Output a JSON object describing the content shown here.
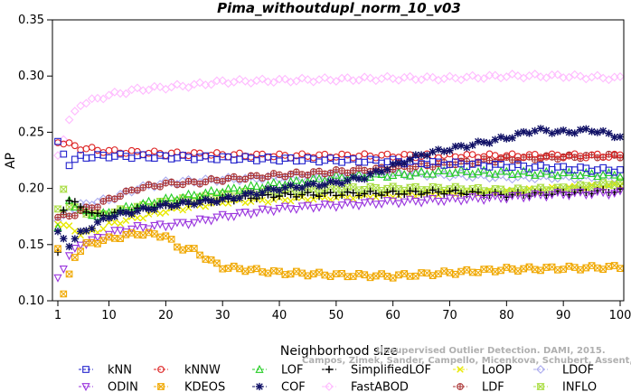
{
  "chart_data": {
    "type": "scatter",
    "title": "Pima_withoutdupl_norm_10_v03",
    "xlabel": "Neighborhood size",
    "ylabel": "AP",
    "xlim": [
      1,
      100
    ],
    "ylim": [
      0.1,
      0.35
    ],
    "xticks": [
      "1",
      "10",
      "20",
      "30",
      "40",
      "50",
      "60",
      "70",
      "80",
      "90",
      "100"
    ],
    "yticks": [
      "0.10",
      "0.15",
      "0.20",
      "0.25",
      "0.30",
      "0.35"
    ],
    "grid": false,
    "legend_position": "bottom",
    "series": [
      {
        "name": "kNN",
        "color": "#2222cc",
        "marker": "square",
        "anchors": [
          [
            1,
            0.24
          ],
          [
            3,
            0.222
          ],
          [
            5,
            0.228
          ],
          [
            10,
            0.229
          ],
          [
            20,
            0.228
          ],
          [
            30,
            0.227
          ],
          [
            40,
            0.226
          ],
          [
            50,
            0.225
          ],
          [
            60,
            0.224
          ],
          [
            70,
            0.222
          ],
          [
            80,
            0.22
          ],
          [
            90,
            0.218
          ],
          [
            100,
            0.216
          ]
        ]
      },
      {
        "name": "kNNW",
        "color": "#dd2222",
        "marker": "circle",
        "anchors": [
          [
            1,
            0.242
          ],
          [
            5,
            0.236
          ],
          [
            10,
            0.233
          ],
          [
            20,
            0.231
          ],
          [
            30,
            0.23
          ],
          [
            40,
            0.229
          ],
          [
            50,
            0.229
          ],
          [
            60,
            0.229
          ],
          [
            70,
            0.229
          ],
          [
            80,
            0.229
          ],
          [
            90,
            0.229
          ],
          [
            100,
            0.229
          ]
        ]
      },
      {
        "name": "LOF",
        "color": "#22cc22",
        "marker": "triangle",
        "anchors": [
          [
            1,
            0.165
          ],
          [
            3,
            0.19
          ],
          [
            5,
            0.18
          ],
          [
            8,
            0.176
          ],
          [
            10,
            0.178
          ],
          [
            15,
            0.185
          ],
          [
            20,
            0.19
          ],
          [
            30,
            0.198
          ],
          [
            40,
            0.204
          ],
          [
            50,
            0.21
          ],
          [
            60,
            0.212
          ],
          [
            70,
            0.215
          ],
          [
            80,
            0.214
          ],
          [
            90,
            0.213
          ],
          [
            100,
            0.212
          ]
        ]
      },
      {
        "name": "SimplifiedLOF",
        "color": "#000000",
        "marker": "plus",
        "anchors": [
          [
            1,
            0.142
          ],
          [
            2,
            0.182
          ],
          [
            3,
            0.19
          ],
          [
            5,
            0.183
          ],
          [
            8,
            0.176
          ],
          [
            10,
            0.177
          ],
          [
            20,
            0.185
          ],
          [
            30,
            0.19
          ],
          [
            40,
            0.194
          ],
          [
            50,
            0.195
          ],
          [
            60,
            0.196
          ],
          [
            70,
            0.197
          ],
          [
            80,
            0.194
          ],
          [
            90,
            0.196
          ],
          [
            100,
            0.198
          ]
        ]
      },
      {
        "name": "LoOP",
        "color": "#e8e800",
        "marker": "x",
        "anchors": [
          [
            1,
            0.17
          ],
          [
            3,
            0.165
          ],
          [
            5,
            0.16
          ],
          [
            8,
            0.162
          ],
          [
            10,
            0.168
          ],
          [
            20,
            0.18
          ],
          [
            30,
            0.188
          ],
          [
            40,
            0.19
          ],
          [
            50,
            0.192
          ],
          [
            60,
            0.194
          ],
          [
            70,
            0.196
          ],
          [
            80,
            0.197
          ],
          [
            90,
            0.2
          ],
          [
            100,
            0.203
          ]
        ]
      },
      {
        "name": "LDOF",
        "color": "#aaaaee",
        "marker": "diamond",
        "anchors": [
          [
            1,
            0.17
          ],
          [
            3,
            0.18
          ],
          [
            5,
            0.185
          ],
          [
            10,
            0.19
          ],
          [
            15,
            0.2
          ],
          [
            20,
            0.205
          ],
          [
            30,
            0.208
          ],
          [
            40,
            0.21
          ],
          [
            50,
            0.212
          ],
          [
            60,
            0.213
          ],
          [
            70,
            0.212
          ],
          [
            80,
            0.21
          ],
          [
            90,
            0.21
          ],
          [
            100,
            0.21
          ]
        ]
      },
      {
        "name": "ODIN",
        "color": "#9933dd",
        "marker": "triangle-down",
        "anchors": [
          [
            1,
            0.12
          ],
          [
            3,
            0.14
          ],
          [
            5,
            0.15
          ],
          [
            8,
            0.155
          ],
          [
            10,
            0.16
          ],
          [
            15,
            0.165
          ],
          [
            20,
            0.167
          ],
          [
            25,
            0.17
          ],
          [
            30,
            0.175
          ],
          [
            40,
            0.182
          ],
          [
            50,
            0.185
          ],
          [
            60,
            0.188
          ],
          [
            70,
            0.19
          ],
          [
            80,
            0.192
          ],
          [
            90,
            0.195
          ],
          [
            100,
            0.196
          ]
        ]
      },
      {
        "name": "KDEOS",
        "color": "#f0a800",
        "marker": "square-x",
        "anchors": [
          [
            1,
            0.148
          ],
          [
            2,
            0.105
          ],
          [
            4,
            0.14
          ],
          [
            6,
            0.15
          ],
          [
            10,
            0.155
          ],
          [
            15,
            0.16
          ],
          [
            20,
            0.158
          ],
          [
            22,
            0.148
          ],
          [
            25,
            0.145
          ],
          [
            28,
            0.135
          ],
          [
            30,
            0.13
          ],
          [
            40,
            0.125
          ],
          [
            50,
            0.123
          ],
          [
            60,
            0.122
          ],
          [
            70,
            0.125
          ],
          [
            80,
            0.128
          ],
          [
            90,
            0.129
          ],
          [
            100,
            0.13
          ]
        ]
      },
      {
        "name": "COF",
        "color": "#111166",
        "marker": "star",
        "anchors": [
          [
            1,
            0.16
          ],
          [
            3,
            0.15
          ],
          [
            5,
            0.16
          ],
          [
            10,
            0.175
          ],
          [
            20,
            0.185
          ],
          [
            30,
            0.19
          ],
          [
            40,
            0.2
          ],
          [
            50,
            0.205
          ],
          [
            55,
            0.21
          ],
          [
            60,
            0.22
          ],
          [
            65,
            0.23
          ],
          [
            70,
            0.235
          ],
          [
            75,
            0.24
          ],
          [
            80,
            0.245
          ],
          [
            85,
            0.252
          ],
          [
            90,
            0.25
          ],
          [
            95,
            0.252
          ],
          [
            100,
            0.246
          ]
        ]
      },
      {
        "name": "FastABOD",
        "color": "#ffbbff",
        "marker": "diamond",
        "anchors": [
          [
            1,
            0.23
          ],
          [
            3,
            0.26
          ],
          [
            5,
            0.275
          ],
          [
            10,
            0.283
          ],
          [
            15,
            0.288
          ],
          [
            20,
            0.29
          ],
          [
            25,
            0.292
          ],
          [
            30,
            0.295
          ],
          [
            40,
            0.296
          ],
          [
            50,
            0.297
          ],
          [
            60,
            0.298
          ],
          [
            70,
            0.298
          ],
          [
            80,
            0.3
          ],
          [
            90,
            0.3
          ],
          [
            100,
            0.298
          ]
        ]
      },
      {
        "name": "LDF",
        "color": "#aa3333",
        "marker": "circle-dot",
        "anchors": [
          [
            1,
            0.175
          ],
          [
            3,
            0.175
          ],
          [
            5,
            0.18
          ],
          [
            8,
            0.185
          ],
          [
            10,
            0.19
          ],
          [
            15,
            0.2
          ],
          [
            20,
            0.204
          ],
          [
            25,
            0.205
          ],
          [
            30,
            0.208
          ],
          [
            40,
            0.212
          ],
          [
            50,
            0.215
          ],
          [
            60,
            0.218
          ],
          [
            70,
            0.222
          ],
          [
            80,
            0.226
          ],
          [
            90,
            0.228
          ],
          [
            100,
            0.229
          ]
        ]
      },
      {
        "name": "INFLO",
        "color": "#aadd44",
        "marker": "hourglass",
        "anchors": [
          [
            1,
            0.18
          ],
          [
            2,
            0.2
          ],
          [
            3,
            0.185
          ],
          [
            5,
            0.18
          ],
          [
            8,
            0.176
          ],
          [
            10,
            0.178
          ],
          [
            20,
            0.188
          ],
          [
            30,
            0.194
          ],
          [
            40,
            0.198
          ],
          [
            50,
            0.2
          ],
          [
            60,
            0.2
          ],
          [
            70,
            0.2
          ],
          [
            80,
            0.198
          ],
          [
            90,
            0.2
          ],
          [
            100,
            0.205
          ]
        ]
      }
    ],
    "watermark": [
      "Unsupervised Outlier Detection. DAMI, 2015.",
      "Campos, Zimek, Sander, Campello, Micenkova, Schubert, Assent, Houle"
    ]
  }
}
